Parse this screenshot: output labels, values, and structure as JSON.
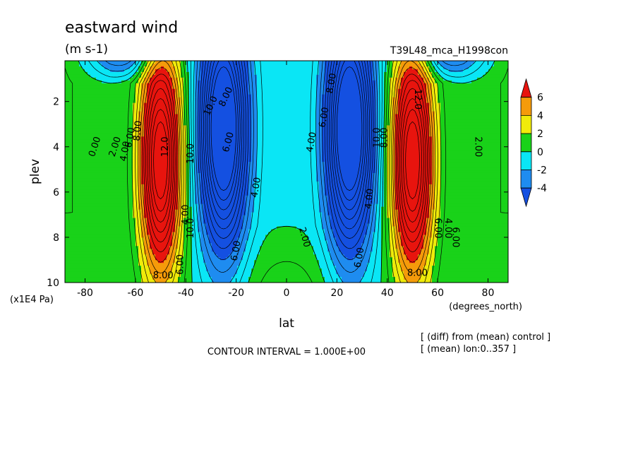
{
  "chart_data": {
    "type": "heatmap",
    "title": "eastward wind",
    "units": "(m s-1)",
    "run_label": "T39L48_mca_H1998con",
    "xlabel": "lat",
    "x_unit_label": "(degrees_north)",
    "ylabel": "plev",
    "y_unit_label": "(x1E4 Pa)",
    "xlim": [
      -88,
      88
    ],
    "ylim": [
      0.2,
      10
    ],
    "y_inverted": true,
    "x_ticks": [
      "-80",
      "-60",
      "-40",
      "-20",
      "0",
      "20",
      "40",
      "60",
      "80"
    ],
    "x_tick_values": [
      -80,
      -60,
      -40,
      -20,
      0,
      20,
      40,
      60,
      80
    ],
    "y_ticks": [
      "2",
      "4",
      "6",
      "8",
      "10"
    ],
    "y_tick_values": [
      2,
      4,
      6,
      8,
      10
    ],
    "colorbar": {
      "labels": [
        "6",
        "4",
        "2",
        "0",
        "-2",
        "-4"
      ],
      "levels": [
        6,
        4,
        2,
        0,
        -2,
        -4
      ],
      "colors": [
        "#e8140e",
        "#f59b0a",
        "#f0eb0a",
        "#19d219",
        "#0ae6f5",
        "#1e8cf0",
        "#1450e1"
      ]
    },
    "fill_colors": {
      "below_-4": "#1450e1",
      "-4_to_-2": "#1e8cf0",
      "-2_to_0": "#0ae6f5",
      "0_to_2": "#19d219",
      "2_to_4": "#f0eb0a",
      "4_to_6": "#f59b0a",
      "above_6": "#e8140e"
    },
    "features": [
      {
        "name": "southern westerly jet",
        "lat": -50,
        "plev": 3,
        "peak": 12
      },
      {
        "name": "northern westerly jet",
        "lat": 50,
        "plev": 3,
        "peak": 12
      },
      {
        "name": "southern easterly core",
        "lat": -25,
        "plev": 2,
        "min": -11
      },
      {
        "name": "northern easterly core",
        "lat": 25,
        "plev": 2,
        "min": -11
      }
    ],
    "contour_labels": [
      {
        "text": "0.00",
        "lat": -76,
        "plev": 4.0,
        "angle": -72
      },
      {
        "text": "2.00",
        "lat": -68,
        "plev": 4.0,
        "angle": -72
      },
      {
        "text": "4.00",
        "lat": -64,
        "plev": 4.2,
        "angle": -80
      },
      {
        "text": "6.00",
        "lat": -62,
        "plev": 3.6,
        "angle": -80
      },
      {
        "text": "8.00",
        "lat": -59,
        "plev": 3.3,
        "angle": -85
      },
      {
        "text": "12.0",
        "lat": -48,
        "plev": 4.0,
        "angle": -90
      },
      {
        "text": "4.00",
        "lat": -40,
        "plev": 7.0,
        "angle": -90
      },
      {
        "text": "10.0",
        "lat": -38,
        "plev": 7.6,
        "angle": -90
      },
      {
        "text": "6.00",
        "lat": -42,
        "plev": 9.2,
        "angle": -90
      },
      {
        "text": "8.00",
        "lat": -49,
        "plev": 9.7,
        "angle": 0
      },
      {
        "text": "10.0",
        "lat": -38,
        "plev": 4.3,
        "angle": -90
      },
      {
        "text": "10.0",
        "lat": -30,
        "plev": 2.2,
        "angle": -65
      },
      {
        "text": "8.00",
        "lat": -24,
        "plev": 1.8,
        "angle": -65
      },
      {
        "text": "6.00",
        "lat": -23,
        "plev": 3.8,
        "angle": -75
      },
      {
        "text": "4.00",
        "lat": -12,
        "plev": 5.8,
        "angle": -80
      },
      {
        "text": "6.00",
        "lat": -20,
        "plev": 8.6,
        "angle": -80
      },
      {
        "text": "2.00",
        "lat": 7,
        "plev": 8.0,
        "angle": 75
      },
      {
        "text": "4.00",
        "lat": 10,
        "plev": 3.8,
        "angle": -80
      },
      {
        "text": "6.00",
        "lat": 15,
        "plev": 2.7,
        "angle": -80
      },
      {
        "text": "8.00",
        "lat": 18,
        "plev": 1.2,
        "angle": -80
      },
      {
        "text": "6.00",
        "lat": 29,
        "plev": 8.9,
        "angle": -80
      },
      {
        "text": "4.00",
        "lat": 33,
        "plev": 6.3,
        "angle": -85
      },
      {
        "text": "10.0",
        "lat": 36,
        "plev": 3.6,
        "angle": -90
      },
      {
        "text": "8.00",
        "lat": 39,
        "plev": 3.6,
        "angle": -90
      },
      {
        "text": "12.0",
        "lat": 52,
        "plev": 1.9,
        "angle": 90
      },
      {
        "text": "8.00",
        "lat": 52,
        "plev": 9.6,
        "angle": 0
      },
      {
        "text": "4.00",
        "lat": 64,
        "plev": 7.6,
        "angle": 90
      },
      {
        "text": "6.00",
        "lat": 60,
        "plev": 7.6,
        "angle": 90
      },
      {
        "text": "6.00",
        "lat": 67,
        "plev": 8.0,
        "angle": 90
      },
      {
        "text": "2.00",
        "lat": 76,
        "plev": 4.0,
        "angle": 90
      }
    ],
    "grid": false,
    "legend": "colorbar-right"
  },
  "notes": {
    "contour_interval": "CONTOUR INTERVAL = 1.000E+00",
    "diff_line": "[ (diff) from (mean) control ]",
    "mean_line": "[ (mean) lon:0..357 ]"
  }
}
